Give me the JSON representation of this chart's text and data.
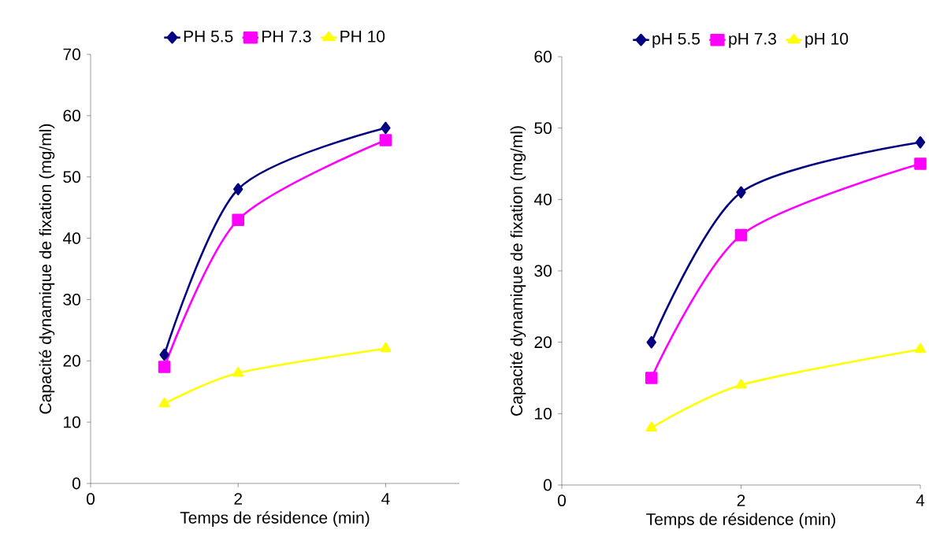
{
  "chart_data": [
    {
      "type": "line",
      "xlabel": "Temps de résidence (min)",
      "ylabel": "Capacité dynamique de fixation (mg/ml)",
      "x": [
        1,
        2,
        4
      ],
      "xlim": [
        0,
        5
      ],
      "xticks": [
        0,
        2,
        4
      ],
      "ylim": [
        0,
        70
      ],
      "yticks": [
        0,
        10,
        20,
        30,
        40,
        50,
        60,
        70
      ],
      "grid": false,
      "legend": "top",
      "line_style": "solid",
      "series": [
        {
          "name": "PH 5.5",
          "color": "#000080",
          "marker": "diamond",
          "values": [
            21,
            48,
            58
          ]
        },
        {
          "name": "PH 7.3",
          "color": "#ff00ff",
          "marker": "square",
          "values": [
            19,
            43,
            56
          ]
        },
        {
          "name": "PH 10",
          "color": "#ffff00",
          "marker": "triangle",
          "values": [
            13,
            18,
            22
          ]
        }
      ]
    },
    {
      "type": "line",
      "xlabel": "Temps de résidence (min)",
      "ylabel": "Capacité dynamique de fixation (mg/ml)",
      "x": [
        1,
        2,
        4
      ],
      "xlim": [
        0,
        4
      ],
      "xticks": [
        0,
        2,
        4
      ],
      "ylim": [
        0,
        60
      ],
      "yticks": [
        0,
        10,
        20,
        30,
        40,
        50,
        60
      ],
      "grid": false,
      "legend": "top",
      "line_style": "solid",
      "series": [
        {
          "name": "pH 5.5",
          "color": "#000080",
          "marker": "diamond",
          "values": [
            20,
            41,
            48
          ]
        },
        {
          "name": "pH 7.3",
          "color": "#ff00ff",
          "marker": "square",
          "values": [
            15,
            35,
            45
          ]
        },
        {
          "name": "pH 10",
          "color": "#ffff00",
          "marker": "triangle",
          "values": [
            8,
            14,
            19
          ]
        }
      ]
    }
  ]
}
